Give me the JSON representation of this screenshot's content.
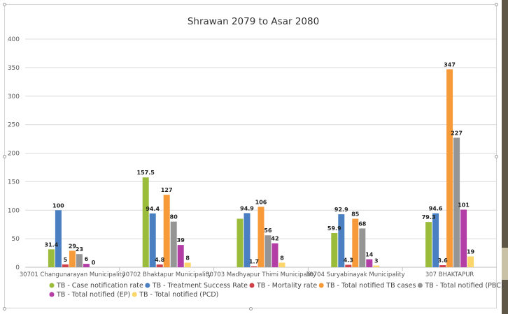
{
  "chart_data": {
    "type": "bar",
    "title": "Shrawan 2079 to Asar 2080",
    "xlabel": "",
    "ylabel": "",
    "ylim": [
      0,
      400
    ],
    "yticks": [
      0,
      50,
      100,
      150,
      200,
      250,
      300,
      350,
      400
    ],
    "grid": true,
    "legend_position": "bottom",
    "categories": [
      "30701 Changunarayan Municipality",
      "30702 Bhaktapur Municipality",
      "30703 Madhyapur Thimi Municipality",
      "30704 Suryabinayak Municipality",
      "307 BHAKTAPUR"
    ],
    "series": [
      {
        "name": "TB - Case notification rate",
        "color": "#9bbb3b",
        "values": [
          31.4,
          157.5,
          85,
          59.9,
          79.3
        ],
        "labels": [
          "31.4",
          "157.5",
          "",
          "59.9",
          "79.3"
        ]
      },
      {
        "name": "TB - Treatment Success Rate",
        "color": "#4a7fc1",
        "values": [
          100,
          94.4,
          94.9,
          92.9,
          94.6
        ],
        "labels": [
          "100",
          "94.4",
          "94.9",
          "92.9",
          "94.6"
        ]
      },
      {
        "name": "TB - Mortality rate",
        "color": "#d0424a",
        "values": [
          5,
          4.8,
          1.7,
          4.3,
          3.6
        ],
        "labels": [
          "5",
          "4.8",
          "1.7",
          "4.3",
          "3.6"
        ]
      },
      {
        "name": "TB - Total notified TB cases",
        "color": "#f79a3a",
        "values": [
          29,
          127,
          106,
          85,
          347
        ],
        "labels": [
          "29",
          "127",
          "106",
          "85",
          "347"
        ]
      },
      {
        "name": "TB - Total notified (PBC)",
        "color": "#959595",
        "values": [
          23,
          80,
          56,
          68,
          227
        ],
        "labels": [
          "23",
          "80",
          "56",
          "68",
          "227"
        ]
      },
      {
        "name": "TB - Total notified (EP)",
        "color": "#b23ea6",
        "values": [
          6,
          39,
          42,
          14,
          101
        ],
        "labels": [
          "6",
          "39",
          "42",
          "14",
          "101"
        ]
      },
      {
        "name": "TB - Total notified (PCD)",
        "color": "#fbd66a",
        "values": [
          0,
          8,
          8,
          3,
          19
        ],
        "labels": [
          "0",
          "8",
          "8",
          "3",
          "19"
        ]
      }
    ]
  }
}
